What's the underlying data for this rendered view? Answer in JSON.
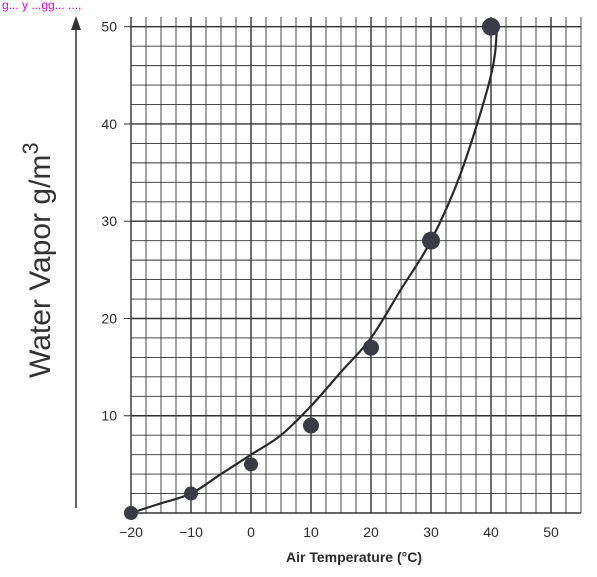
{
  "top_fragment_text": "g... y ...gg...   ...,",
  "chart_data": {
    "type": "scatter",
    "xlabel": "Air Temperature (°C)",
    "ylabel": "Water Vapor g/m",
    "ylabel_superscript": "3",
    "xlim": [
      -20,
      55
    ],
    "ylim": [
      0,
      51
    ],
    "x_ticks": [
      -20,
      -10,
      0,
      10,
      20,
      30,
      40,
      50
    ],
    "x_tick_labels": [
      "−20",
      "−10",
      "0",
      "10",
      "20",
      "30",
      "40",
      "50"
    ],
    "y_ticks": [
      10,
      20,
      30,
      40,
      50
    ],
    "y_tick_labels": [
      "10",
      "20",
      "30",
      "40",
      "50"
    ],
    "grid": true,
    "grid_minor_x_step": 2.5,
    "grid_minor_y_step": 2,
    "points": [
      {
        "x": -20,
        "y": 0
      },
      {
        "x": -10,
        "y": 2
      },
      {
        "x": 0,
        "y": 5
      },
      {
        "x": 10,
        "y": 9
      },
      {
        "x": 20,
        "y": 17
      },
      {
        "x": 30,
        "y": 28
      },
      {
        "x": 40,
        "y": 50
      }
    ],
    "curve_x": [
      -20,
      -15,
      -10,
      -5,
      0,
      5,
      10,
      15,
      20,
      25,
      30,
      35,
      40,
      41
    ],
    "curve_y": [
      0,
      1,
      2,
      4,
      6,
      8,
      11,
      14.5,
      18,
      23,
      28,
      35,
      45,
      50
    ],
    "colors": {
      "grid": "#333333",
      "point": "#3b3b45",
      "curve": "#2a2a2a",
      "text": "#2a2a2a",
      "fragment": "#e000e0"
    }
  }
}
